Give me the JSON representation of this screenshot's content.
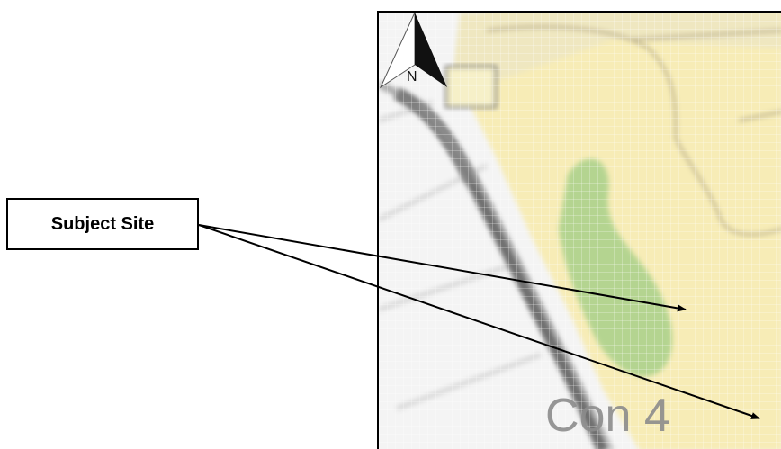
{
  "callout": {
    "label": "Subject Site"
  },
  "map": {
    "zone_label": "Con 4",
    "north_label": "N",
    "north_arrow": "north-arrow-icon",
    "colors": {
      "residential": "#f6ecb4",
      "green_space": "#a9d08a",
      "road": "#6e6e6e",
      "background": "#f2f2f2"
    }
  }
}
